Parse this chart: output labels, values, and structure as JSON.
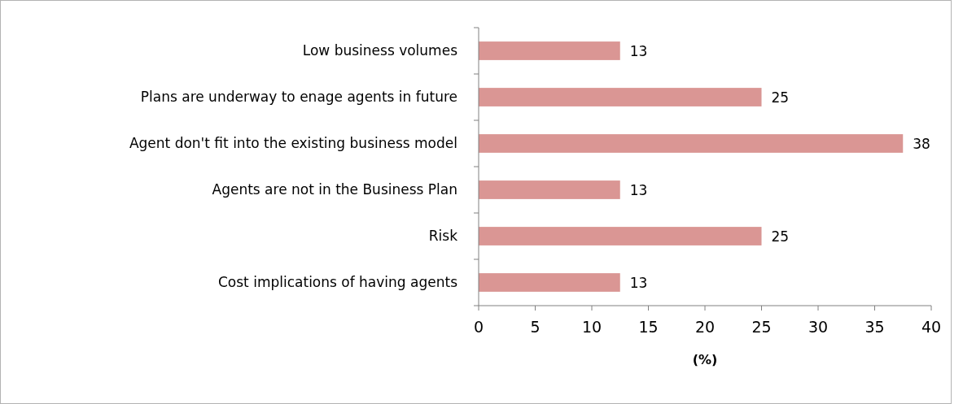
{
  "chart_data": {
    "type": "bar",
    "orientation": "horizontal",
    "xlabel": "(%)",
    "categories": [
      "Low business volumes",
      "Plans are underway to enage agents in future",
      "Agent don't fit into the existing business model",
      "Agents are not in the Business Plan",
      "Risk",
      "Cost implications of having agents"
    ],
    "values": [
      12.5,
      25,
      37.5,
      12.5,
      25,
      12.5
    ],
    "value_labels": [
      "13",
      "25",
      "38",
      "13",
      "25",
      "13"
    ],
    "color": "#da9694",
    "xlim": [
      0,
      40
    ],
    "xticks": [
      0,
      5,
      10,
      15,
      20,
      25,
      30,
      35,
      40
    ],
    "grid": false
  }
}
